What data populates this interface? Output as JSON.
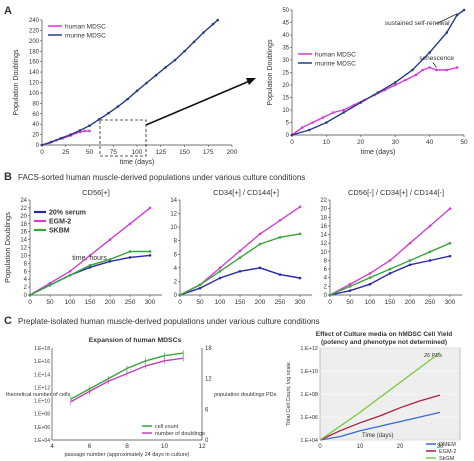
{
  "panels": {
    "A": {
      "letter": "A"
    },
    "B": {
      "letter": "B",
      "title": "FACS-sorted human muscle-derived populations under various culture conditions"
    },
    "C": {
      "letter": "C",
      "title": "Preplate-isolated human muscle-derived populations under various culture conditions"
    }
  },
  "chart_data": [
    {
      "id": "a1",
      "type": "line",
      "xlabel": "time (days)",
      "ylabel": "Population Doublings",
      "xlim": [
        0,
        200
      ],
      "ylim": [
        0,
        240
      ],
      "xticks": [
        0,
        25,
        50,
        75,
        100,
        125,
        150,
        175,
        200
      ],
      "yticks": [
        0,
        20,
        40,
        60,
        80,
        100,
        120,
        140,
        160,
        180,
        200,
        220,
        240
      ],
      "legend": "top-left",
      "series": [
        {
          "name": "human MDSC",
          "color": "#d63cd6",
          "points": [
            [
              0,
              0
            ],
            [
              8,
              4
            ],
            [
              15,
              9
            ],
            [
              22,
              13
            ],
            [
              30,
              18
            ],
            [
              36,
              23
            ],
            [
              40,
              25
            ],
            [
              45,
              27
            ],
            [
              50,
              27
            ]
          ]
        },
        {
          "name": "murine MDSC",
          "color": "#283c82",
          "points": [
            [
              0,
              0
            ],
            [
              10,
              6
            ],
            [
              20,
              13
            ],
            [
              30,
              20
            ],
            [
              40,
              28
            ],
            [
              50,
              37
            ],
            [
              60,
              49
            ],
            [
              70,
              61
            ],
            [
              80,
              74
            ],
            [
              90,
              88
            ],
            [
              100,
              104
            ],
            [
              110,
              119
            ],
            [
              120,
              134
            ],
            [
              130,
              149
            ],
            [
              140,
              163
            ],
            [
              150,
              180
            ],
            [
              160,
              198
            ],
            [
              170,
              216
            ],
            [
              180,
              232
            ],
            [
              185,
              240
            ]
          ]
        }
      ]
    },
    {
      "id": "a2",
      "type": "line",
      "xlabel": "time (days)",
      "ylabel": "Population Doublings",
      "xlim": [
        0,
        50
      ],
      "ylim": [
        0,
        50
      ],
      "xticks": [
        0,
        10,
        20,
        30,
        40,
        50
      ],
      "yticks": [
        0,
        5,
        10,
        15,
        20,
        25,
        30,
        35,
        40,
        45,
        50
      ],
      "legend": "middle-left",
      "annotations": [
        "sustained self-renewal",
        "senescence"
      ],
      "series": [
        {
          "name": "human MDSC",
          "color": "#d63cd6",
          "points": [
            [
              0,
              0
            ],
            [
              3,
              3
            ],
            [
              6,
              5
            ],
            [
              9,
              7
            ],
            [
              12,
              9
            ],
            [
              15,
              10
            ],
            [
              18,
              12
            ],
            [
              21,
              14
            ],
            [
              24,
              16
            ],
            [
              27,
              18
            ],
            [
              30,
              20
            ],
            [
              33,
              22
            ],
            [
              36,
              24
            ],
            [
              38,
              26
            ],
            [
              40,
              27
            ],
            [
              42,
              26
            ],
            [
              45,
              26
            ],
            [
              48,
              27
            ]
          ]
        },
        {
          "name": "murine MDSC",
          "color": "#283c82",
          "points": [
            [
              0,
              0
            ],
            [
              5,
              2
            ],
            [
              10,
              5
            ],
            [
              15,
              9
            ],
            [
              20,
              13
            ],
            [
              25,
              17
            ],
            [
              30,
              21
            ],
            [
              35,
              26
            ],
            [
              40,
              33
            ],
            [
              45,
              41
            ],
            [
              48,
              48
            ],
            [
              50,
              50
            ]
          ]
        }
      ]
    },
    {
      "id": "b1",
      "type": "line",
      "subtitle": "CD56[+]",
      "xlabel": "time, hours",
      "ylabel": "Population Doublings",
      "xlim": [
        0,
        330
      ],
      "ylim": [
        0,
        24
      ],
      "xticks": [
        0,
        50,
        100,
        150,
        200,
        250,
        300
      ],
      "yticks": [
        0,
        2,
        4,
        6,
        8,
        10,
        12,
        14,
        16,
        18,
        20,
        22,
        24
      ],
      "legend": "top-left",
      "series": [
        {
          "name": "20% serum",
          "color": "#2a2aa8",
          "points": [
            [
              0,
              0
            ],
            [
              50,
              2.5
            ],
            [
              100,
              5
            ],
            [
              150,
              7
            ],
            [
              200,
              8.5
            ],
            [
              250,
              9.5
            ],
            [
              300,
              10
            ]
          ]
        },
        {
          "name": "EGM-2",
          "color": "#d040d0",
          "points": [
            [
              0,
              0
            ],
            [
              50,
              3
            ],
            [
              100,
              6
            ],
            [
              150,
              10
            ],
            [
              200,
              14
            ],
            [
              250,
              18
            ],
            [
              300,
              22
            ]
          ]
        },
        {
          "name": "SKBM",
          "color": "#3aa53a",
          "points": [
            [
              0,
              0
            ],
            [
              50,
              2.5
            ],
            [
              100,
              5
            ],
            [
              150,
              7.5
            ],
            [
              200,
              9
            ],
            [
              250,
              11
            ],
            [
              300,
              11
            ]
          ]
        }
      ]
    },
    {
      "id": "b2",
      "type": "line",
      "subtitle": "CD34[+] / CD144[+]",
      "xlim": [
        0,
        330
      ],
      "ylim": [
        0,
        14
      ],
      "xticks": [
        0,
        50,
        100,
        150,
        200,
        250,
        300
      ],
      "yticks": [
        0,
        2,
        4,
        6,
        8,
        10,
        12,
        14
      ],
      "series": [
        {
          "name": "20% serum",
          "color": "#2a2aa8",
          "points": [
            [
              0,
              0
            ],
            [
              50,
              1
            ],
            [
              100,
              2.5
            ],
            [
              150,
              3.5
            ],
            [
              200,
              4
            ],
            [
              250,
              3
            ],
            [
              300,
              2.5
            ]
          ]
        },
        {
          "name": "EGM-2",
          "color": "#d040d0",
          "points": [
            [
              0,
              0
            ],
            [
              50,
              1.5
            ],
            [
              100,
              4
            ],
            [
              150,
              6.5
            ],
            [
              200,
              9
            ],
            [
              250,
              11
            ],
            [
              300,
              13
            ]
          ]
        },
        {
          "name": "SKBM",
          "color": "#3aa53a",
          "points": [
            [
              0,
              0
            ],
            [
              50,
              1.5
            ],
            [
              100,
              3.5
            ],
            [
              150,
              5.5
            ],
            [
              200,
              7.5
            ],
            [
              250,
              8.5
            ],
            [
              300,
              9
            ]
          ]
        }
      ]
    },
    {
      "id": "b3",
      "type": "line",
      "subtitle": "CD56[-] / CD34[+] / CD144[-]",
      "xlim": [
        0,
        330
      ],
      "ylim": [
        0,
        22
      ],
      "xticks": [
        0,
        50,
        100,
        150,
        200,
        250,
        300
      ],
      "yticks": [
        0,
        2,
        4,
        6,
        8,
        10,
        12,
        14,
        16,
        18,
        20,
        22
      ],
      "series": [
        {
          "name": "20% serum",
          "color": "#2a2aa8",
          "points": [
            [
              0,
              0
            ],
            [
              50,
              1
            ],
            [
              100,
              2.5
            ],
            [
              150,
              5
            ],
            [
              200,
              7
            ],
            [
              250,
              8
            ],
            [
              300,
              9
            ]
          ]
        },
        {
          "name": "EGM-2",
          "color": "#d040d0",
          "points": [
            [
              0,
              0
            ],
            [
              50,
              2.5
            ],
            [
              100,
              5
            ],
            [
              150,
              8
            ],
            [
              200,
              12
            ],
            [
              250,
              16
            ],
            [
              300,
              20
            ]
          ]
        },
        {
          "name": "SKBM",
          "color": "#3aa53a",
          "points": [
            [
              0,
              0
            ],
            [
              50,
              2
            ],
            [
              100,
              4
            ],
            [
              150,
              6
            ],
            [
              200,
              8
            ],
            [
              250,
              10
            ],
            [
              300,
              12
            ]
          ]
        }
      ]
    },
    {
      "id": "c1",
      "type": "line",
      "title": "Expansion of human MDSCs",
      "xlabel": "passage number (approximately 24 days in culture)",
      "ylabel_left": "theoretical number of cells",
      "ylabel_right": "population doublings PDs",
      "xlim": [
        4,
        12
      ],
      "xticks": [
        4,
        6,
        8,
        10,
        12
      ],
      "yticks_left": [
        "1.E+04",
        "1.E+06",
        "1.E+08",
        "1.E+10",
        "1.E+12",
        "1.E+14",
        "1.E+16",
        "1.E+18"
      ],
      "yticks_right": [
        0,
        6,
        12,
        18
      ],
      "legend": "bottom-right",
      "series": [
        {
          "name": "cell count",
          "color": "#3aa53a",
          "points": [
            [
              5,
              8
            ],
            [
              6,
              10
            ],
            [
              7,
              12
            ],
            [
              8,
              14
            ],
            [
              9,
              15.5
            ],
            [
              10,
              16.5
            ],
            [
              11,
              17
            ]
          ]
        },
        {
          "name": "number of doublings",
          "color": "#c040c0",
          "points": [
            [
              5,
              7.5
            ],
            [
              6,
              9.5
            ],
            [
              7,
              11.5
            ],
            [
              8,
              13
            ],
            [
              9,
              14.5
            ],
            [
              10,
              15.5
            ],
            [
              11,
              16
            ]
          ]
        }
      ]
    },
    {
      "id": "c2",
      "type": "line",
      "title": "Effect of Culture media on hMDSC Cell Yield (potency and phenotype not determined)",
      "xlabel": "Time (days)",
      "ylabel": "Total Cell Count, log scale",
      "xlim": [
        0,
        35
      ],
      "xticks": [
        0,
        10,
        20,
        30
      ],
      "yticks": [
        "1.E+04",
        "1.E+06",
        "1.E+08",
        "1.E+10",
        "1.E+12"
      ],
      "annotations": [
        "26 PDs"
      ],
      "legend": "bottom-right",
      "series": [
        {
          "name": "DMEM",
          "color": "#3a6ad8",
          "points": [
            [
              0,
              4
            ],
            [
              5,
              4.3
            ],
            [
              10,
              4.8
            ],
            [
              15,
              5.2
            ],
            [
              20,
              5.6
            ],
            [
              25,
              6.0
            ],
            [
              30,
              6.4
            ]
          ]
        },
        {
          "name": "EGM-2",
          "color": "#a8203a",
          "points": [
            [
              0,
              4
            ],
            [
              5,
              4.8
            ],
            [
              10,
              5.5
            ],
            [
              15,
              6.1
            ],
            [
              20,
              6.8
            ],
            [
              25,
              7.4
            ],
            [
              30,
              7.9
            ]
          ]
        },
        {
          "name": "SkGM",
          "color": "#7ac83a",
          "points": [
            [
              0,
              4
            ],
            [
              5,
              5.2
            ],
            [
              10,
              6.4
            ],
            [
              15,
              7.7
            ],
            [
              20,
              9.0
            ],
            [
              25,
              10.3
            ],
            [
              30,
              11.6
            ]
          ]
        }
      ]
    }
  ]
}
